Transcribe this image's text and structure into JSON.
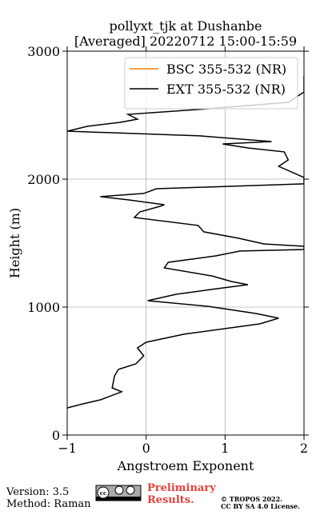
{
  "chart_data": {
    "type": "line",
    "title": [
      "pollyxt_tjk at Dushanbe",
      "[Averaged] 20220712 15:00-15:59"
    ],
    "xlabel": "Angstroem Exponent",
    "ylabel": "Height (m)",
    "xlim": [
      -1,
      2
    ],
    "xticks": [
      {
        "value": -1,
        "label": "−1"
      },
      0,
      1,
      2
    ],
    "ylim": [
      0,
      3000
    ],
    "yticks": [
      0,
      1000,
      2000,
      3000
    ],
    "grid": true,
    "legend": "upper right",
    "y": [
      212,
      244,
      275,
      338,
      369,
      463,
      513,
      556,
      619,
      681,
      725,
      788,
      869,
      913,
      950,
      1006,
      1050,
      1100,
      1138,
      1175,
      1200,
      1244,
      1306,
      1350,
      1400,
      1438,
      1450,
      1475,
      1494,
      1538,
      1588,
      1638,
      1700,
      1744,
      1788,
      1800,
      1838,
      1863,
      1888,
      1925,
      1963,
      2013,
      2100,
      2150,
      2213,
      2244,
      2275,
      2294,
      2338,
      2375,
      2413,
      2444,
      2469,
      2506,
      2550,
      2600,
      2681,
      2806
    ],
    "series": [
      {
        "name": "BSC 355-532 (NR)",
        "color": "#ff7f0e",
        "values": [
          null,
          null,
          null,
          null,
          null,
          null,
          null,
          null,
          null,
          null,
          null,
          null,
          null,
          null,
          null,
          null,
          null,
          null,
          null,
          null,
          null,
          null,
          null,
          null,
          null,
          null,
          null,
          null,
          null,
          null,
          null,
          null,
          null,
          null,
          null,
          null,
          null,
          null,
          null,
          null,
          null,
          null,
          null,
          null,
          null,
          null,
          null,
          null,
          null,
          null,
          null,
          null,
          null,
          null,
          null,
          null,
          null,
          null
        ]
      },
      {
        "name": "EXT 355-532 (NR)",
        "color": "#000000",
        "values": [
          -1.0,
          -0.8,
          -0.58,
          -0.31,
          -0.43,
          -0.4,
          -0.35,
          -0.13,
          -0.03,
          -0.11,
          0.0,
          0.48,
          1.44,
          1.68,
          1.39,
          0.78,
          0.02,
          0.38,
          0.83,
          1.29,
          1.08,
          0.83,
          0.23,
          0.28,
          0.88,
          1.19,
          2.0,
          2.0,
          1.49,
          1.17,
          0.73,
          0.66,
          -0.15,
          -0.08,
          0.18,
          0.23,
          -0.23,
          -0.58,
          -0.03,
          0.13,
          2.0,
          2.0,
          1.68,
          1.8,
          1.75,
          1.29,
          0.97,
          1.59,
          0.68,
          -1.0,
          -0.74,
          -0.33,
          -0.11,
          -0.23,
          0.78,
          1.8,
          2.0,
          2.0
        ]
      }
    ]
  },
  "footer": {
    "version": "Version: 3.5",
    "method": "Method: Raman",
    "preliminary": [
      "Preliminary",
      "Results."
    ],
    "copyright": [
      "© TROPOS 2022.",
      "CC BY SA 4.0 License."
    ]
  }
}
